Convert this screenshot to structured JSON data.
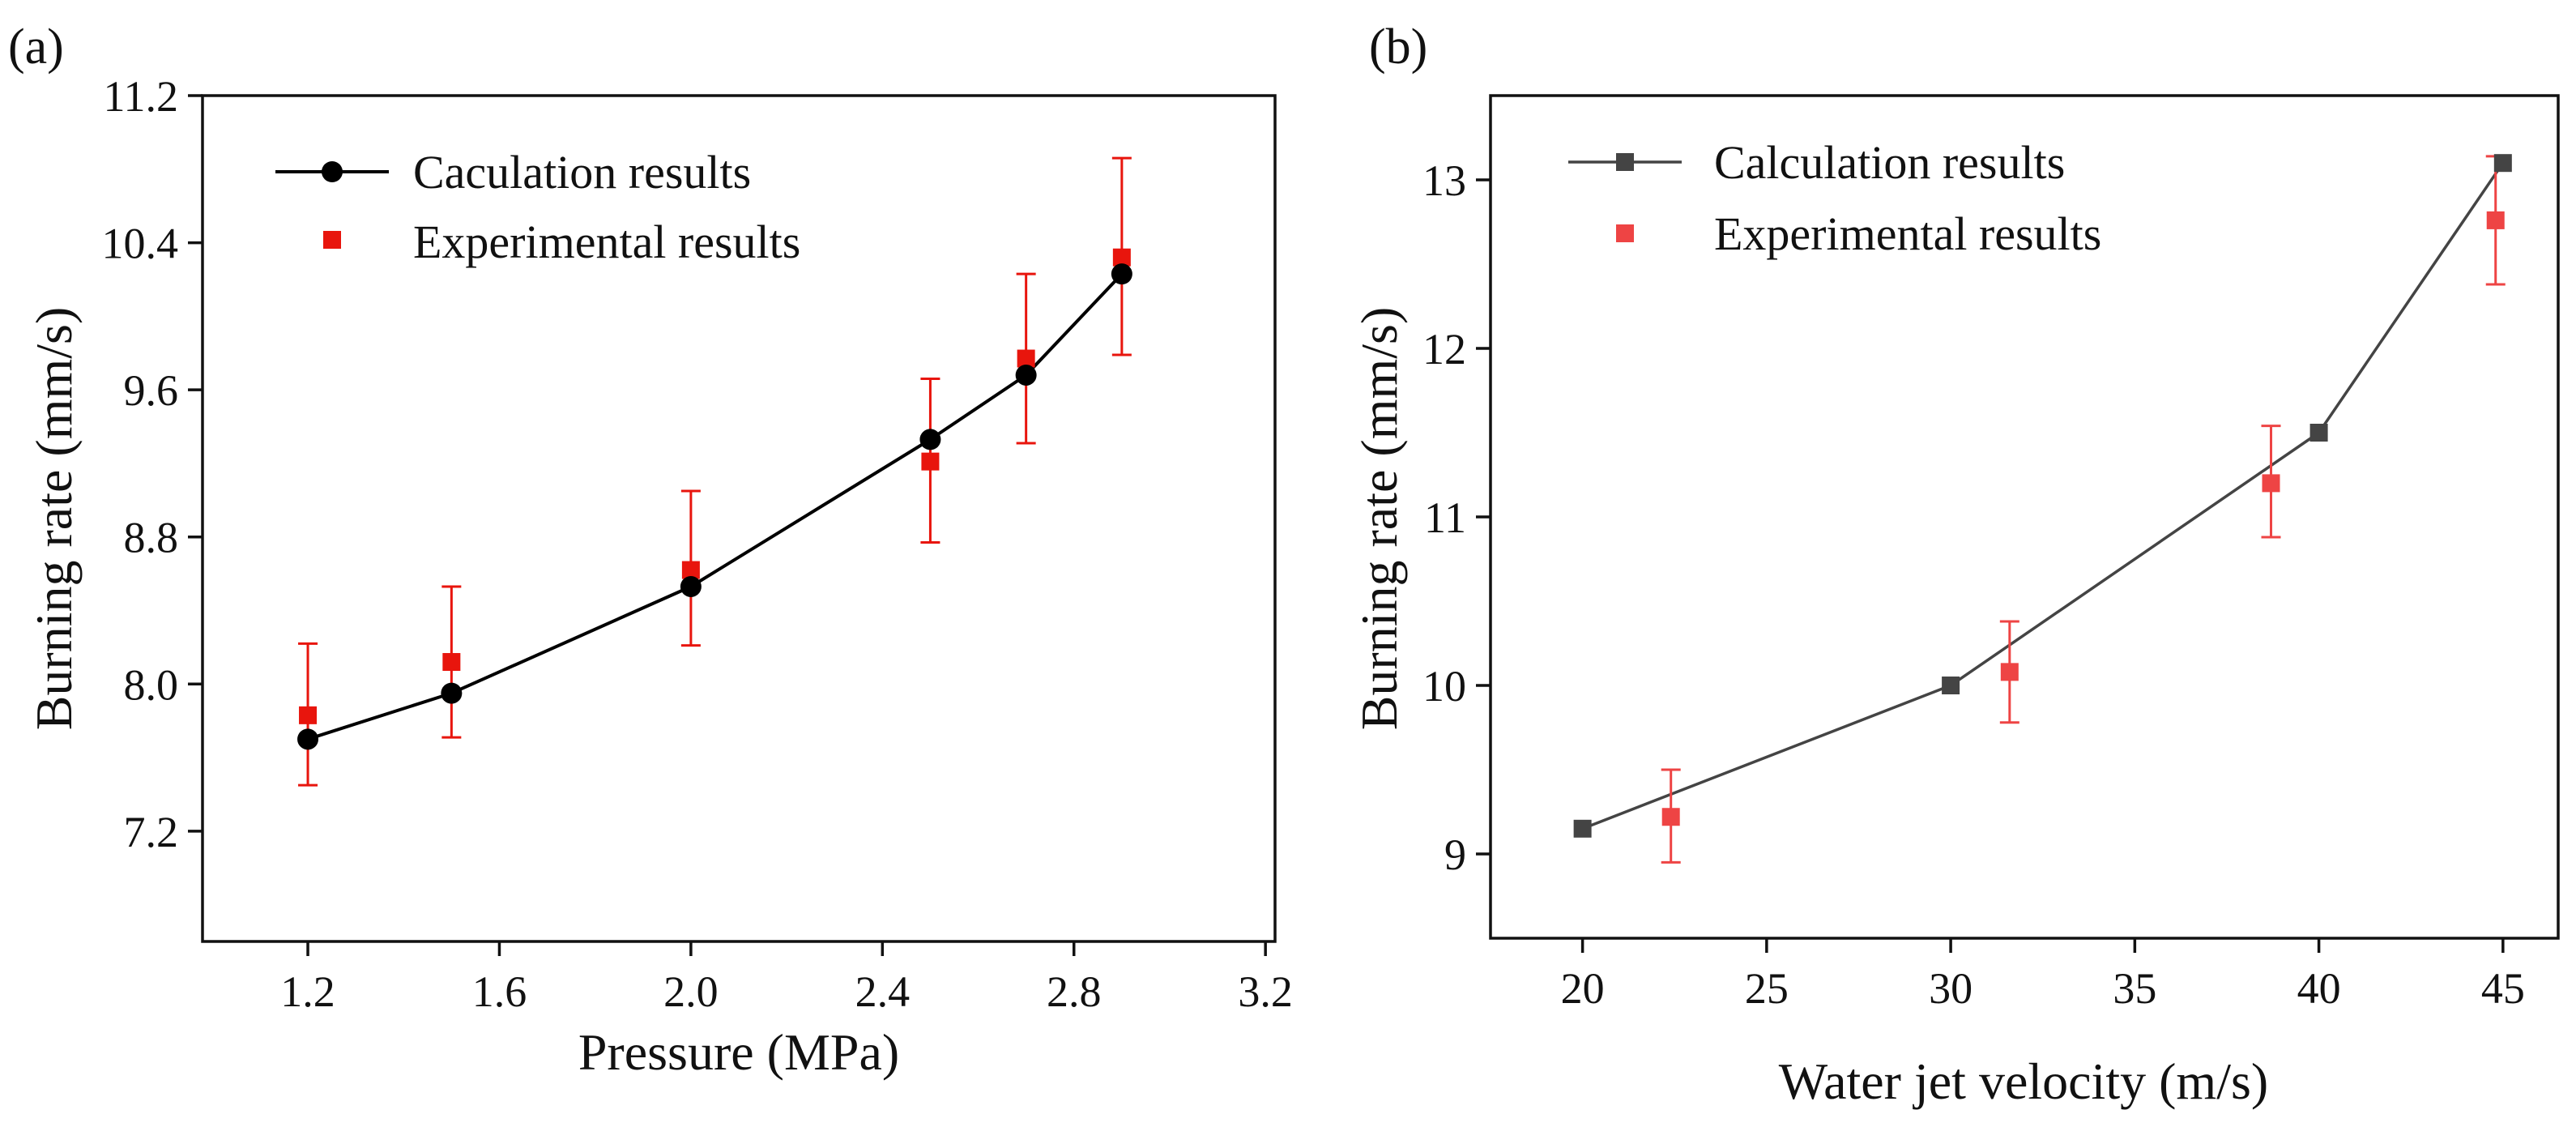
{
  "figure": {
    "panel_labels": [
      "(a)",
      "(b)"
    ]
  },
  "colors": {
    "calc_a": "#000000",
    "calc_b": "#444444",
    "exp_a": "#e8150d",
    "exp_b": "#ee4444",
    "axis": "#111111"
  },
  "chart_data": [
    {
      "type": "line",
      "panel": "(a)",
      "title": "",
      "xlabel": "Pressure (MPa)",
      "ylabel": "Burning rate  (mm/s)",
      "xlim": [
        0.98,
        3.22
      ],
      "ylim": [
        6.6,
        11.2
      ],
      "xticks": [
        1.2,
        1.6,
        2.0,
        2.4,
        2.8,
        3.2
      ],
      "xtick_labels": [
        "1.2",
        "1.6",
        "2.0",
        "2.4",
        "2.8",
        "3.2"
      ],
      "yticks": [
        7.2,
        8.0,
        8.8,
        9.6,
        10.4,
        11.2
      ],
      "ytick_labels": [
        "7.2",
        "8.0",
        "8.8",
        "9.6",
        "10.4",
        "11.2"
      ],
      "legend_position": "top-left",
      "series": [
        {
          "name": "Caculation results",
          "marker": "circle",
          "line": true,
          "x": [
            1.2,
            1.5,
            2.0,
            2.5,
            2.7,
            2.9
          ],
          "y": [
            7.7,
            7.95,
            8.53,
            9.33,
            9.68,
            10.23
          ]
        },
        {
          "name": "Experimental results",
          "marker": "square",
          "line": false,
          "x": [
            1.2,
            1.5,
            2.0,
            2.5,
            2.7,
            2.9
          ],
          "y": [
            7.83,
            8.12,
            8.62,
            9.21,
            9.77,
            10.32
          ],
          "err_low": [
            7.45,
            7.71,
            8.21,
            8.77,
            9.31,
            9.79
          ],
          "err_high": [
            8.22,
            8.53,
            9.05,
            9.66,
            10.23,
            10.86
          ]
        }
      ]
    },
    {
      "type": "line",
      "panel": "(b)",
      "title": "",
      "xlabel": "Water jet velocity (m/s)",
      "ylabel": "Burning rate (mm/s)",
      "xlim": [
        17.5,
        46.5
      ],
      "ylim": [
        8.5,
        13.5
      ],
      "xticks": [
        20,
        25,
        30,
        35,
        40,
        45
      ],
      "xtick_labels": [
        "20",
        "25",
        "30",
        "35",
        "40",
        "45"
      ],
      "yticks": [
        9,
        10,
        11,
        12,
        13
      ],
      "ytick_labels": [
        "9",
        "10",
        "11",
        "12",
        "13"
      ],
      "legend_position": "top-left",
      "series": [
        {
          "name": "Calculation results",
          "marker": "square",
          "line": true,
          "x": [
            20,
            30,
            40,
            45
          ],
          "y": [
            9.15,
            10.0,
            11.5,
            13.1
          ]
        },
        {
          "name": "Experimental results",
          "marker": "square",
          "line": false,
          "x": [
            22.4,
            31.6,
            38.7,
            44.8
          ],
          "y": [
            9.22,
            10.08,
            11.2,
            12.76
          ],
          "err_low": [
            8.95,
            9.78,
            10.88,
            12.38
          ],
          "err_high": [
            9.5,
            10.38,
            11.54,
            13.14
          ]
        }
      ]
    }
  ]
}
